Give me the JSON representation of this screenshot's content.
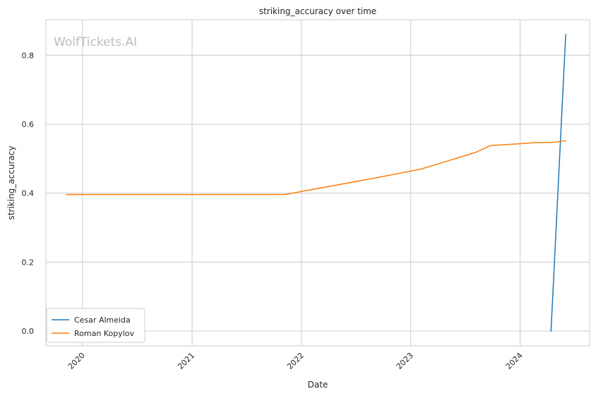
{
  "chart_data": {
    "type": "line",
    "title": "striking_accuracy over time",
    "xlabel": "Date",
    "ylabel": "striking_accuracy",
    "watermark": "WolfTickets.AI",
    "x_tick_labels": [
      "2020",
      "2021",
      "2022",
      "2023",
      "2024"
    ],
    "y_tick_labels": [
      "0.0",
      "0.2",
      "0.4",
      "0.6",
      "0.8"
    ],
    "xlim": [
      "2019-09-01",
      "2024-08-20"
    ],
    "ylim": [
      -0.043,
      0.903
    ],
    "grid": true,
    "legend_position": "lower-left",
    "series": [
      {
        "name": "Cesar Almeida",
        "color": "#1f77b4",
        "points": [
          {
            "x": "2024-04-13",
            "y": 0.0
          },
          {
            "x": "2024-06-01",
            "y": 0.86
          }
        ]
      },
      {
        "name": "Roman Kopylov",
        "color": "#ff7f0e",
        "points": [
          {
            "x": "2019-11-09",
            "y": 0.396
          },
          {
            "x": "2021-11-06",
            "y": 0.396
          },
          {
            "x": "2022-09-03",
            "y": 0.444
          },
          {
            "x": "2023-02-04",
            "y": 0.47
          },
          {
            "x": "2023-08-05",
            "y": 0.518
          },
          {
            "x": "2023-09-23",
            "y": 0.538
          },
          {
            "x": "2024-01-13",
            "y": 0.544
          },
          {
            "x": "2024-02-24",
            "y": 0.547
          },
          {
            "x": "2024-04-13",
            "y": 0.547
          },
          {
            "x": "2024-06-01",
            "y": 0.552
          }
        ]
      }
    ]
  }
}
